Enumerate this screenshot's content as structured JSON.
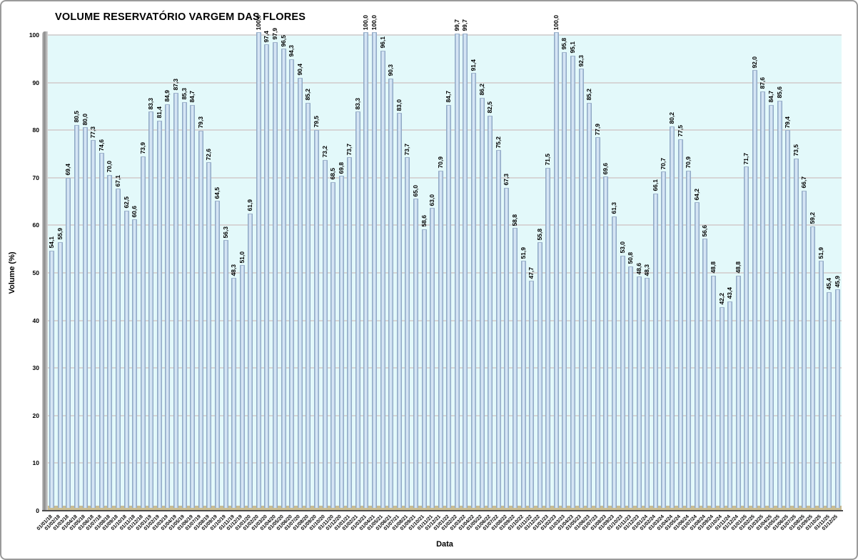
{
  "chart_data": {
    "type": "bar",
    "title": "VOLUME RESERVATÓRIO VARGEM DAS FLORES",
    "xlabel": "Data",
    "ylabel": "Volume (%)",
    "ylim": [
      0,
      100
    ],
    "yticks": [
      0,
      10,
      20,
      30,
      40,
      50,
      60,
      70,
      80,
      90,
      100
    ],
    "grid": true,
    "legend": false,
    "value_label_decimal_separator": ",",
    "categories": [
      "01/01/18",
      "01/02/18",
      "01/03/18",
      "01/04/18",
      "01/05/18",
      "01/06/18",
      "01/07/18",
      "01/08/18",
      "01/09/18",
      "01/10/18",
      "01/11/18",
      "01/12/18",
      "01/01/19",
      "01/02/19",
      "01/03/19",
      "01/04/19",
      "01/05/19",
      "01/06/19",
      "01/07/19",
      "01/08/19",
      "01/09/19",
      "01/10/19",
      "01/11/19",
      "01/12/19",
      "01/01/20",
      "01/02/20",
      "01/03/20",
      "01/04/20",
      "01/05/20",
      "01/06/20",
      "01/07/20",
      "01/08/20",
      "01/09/20",
      "01/10/20",
      "01/11/20",
      "01/12/20",
      "01/01/21",
      "01/02/21",
      "01/03/21",
      "01/04/21",
      "01/05/21",
      "01/06/21",
      "01/07/21",
      "01/08/21",
      "01/09/21",
      "01/10/21",
      "01/11/21",
      "01/12/21",
      "01/01/22",
      "01/02/22",
      "01/03/22",
      "01/04/22",
      "01/05/22",
      "01/06/22",
      "01/07/22",
      "01/08/22",
      "01/09/22",
      "01/10/22",
      "01/11/22",
      "01/12/22",
      "01/01/23",
      "01/02/23",
      "01/03/23",
      "01/04/23",
      "01/05/23",
      "01/06/23",
      "01/07/23",
      "01/08/23",
      "01/09/23",
      "01/10/23",
      "01/11/23",
      "01/12/23",
      "01/01/24",
      "01/02/24",
      "01/03/24",
      "01/04/24",
      "01/05/24",
      "01/06/24",
      "01/07/24",
      "01/08/24",
      "01/09/24",
      "01/10/24",
      "01/11/24",
      "01/12/24",
      "01/01/25",
      "01/02/25",
      "01/03/25",
      "01/04/25",
      "01/05/25",
      "01/06/25",
      "01/07/25",
      "01/08/25",
      "01/09/25",
      "01/10/25",
      "01/11/25",
      "01/12/25"
    ],
    "values": [
      54.1,
      55.9,
      69.4,
      80.5,
      80.0,
      77.3,
      74.6,
      70.0,
      67.1,
      62.5,
      60.6,
      73.9,
      83.3,
      81.4,
      84.9,
      87.3,
      85.3,
      84.7,
      79.3,
      72.6,
      64.5,
      56.3,
      48.3,
      51.0,
      61.9,
      100.0,
      97.4,
      97.9,
      96.5,
      94.3,
      90.4,
      85.2,
      79.5,
      73.2,
      68.5,
      69.8,
      73.7,
      83.3,
      100.0,
      100.0,
      96.1,
      90.3,
      83.0,
      73.7,
      65.0,
      58.6,
      63.0,
      70.9,
      84.7,
      99.7,
      99.7,
      91.4,
      86.2,
      82.5,
      75.2,
      67.3,
      58.8,
      51.9,
      47.7,
      55.8,
      71.5,
      100.0,
      95.8,
      95.1,
      92.3,
      85.2,
      77.9,
      69.6,
      61.3,
      53.0,
      50.8,
      48.6,
      48.3,
      66.1,
      70.7,
      80.2,
      77.5,
      70.9,
      64.2,
      56.6,
      48.8,
      42.2,
      43.4,
      48.8,
      71.7,
      92.0,
      87.6,
      84.7,
      85.6,
      79.4,
      73.5,
      66.7,
      59.2,
      51.9,
      45.4,
      45.9
    ],
    "colors": {
      "plot_bg": "#E3F9FA",
      "gridline": "#D6D6D6",
      "bar_edge": "#7E97B4",
      "bar_light": "#DCEAF7",
      "floor": "#C9BD93",
      "wall": "#9E9E9E",
      "axis_line": "#4d4d4d",
      "text": "#000000"
    }
  }
}
